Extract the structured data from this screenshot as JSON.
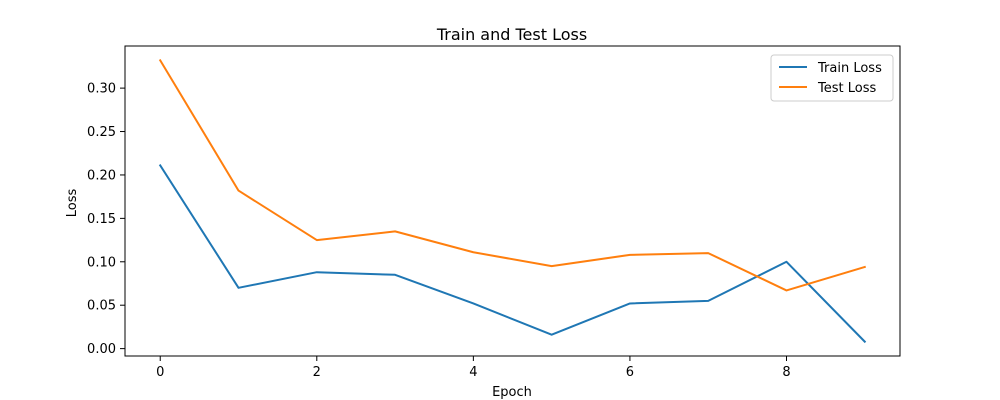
{
  "chart_data": {
    "type": "line",
    "title": "Train and Test Loss",
    "xlabel": "Epoch",
    "ylabel": "Loss",
    "x": [
      0,
      1,
      2,
      3,
      4,
      5,
      6,
      7,
      8,
      9
    ],
    "xlim": [
      -0.45,
      9.45
    ],
    "ylim": [
      -0.0085,
      0.3485
    ],
    "xticks": [
      0,
      2,
      4,
      6,
      8
    ],
    "yticks": [
      0.0,
      0.05,
      0.1,
      0.15,
      0.2,
      0.25,
      0.3
    ],
    "ytick_labels": [
      "0.00",
      "0.05",
      "0.10",
      "0.15",
      "0.20",
      "0.25",
      "0.30"
    ],
    "grid": false,
    "legend_position": "top-right",
    "series": [
      {
        "name": "Train Loss",
        "color": "#1f77b4",
        "values": [
          0.211,
          0.07,
          0.088,
          0.085,
          0.052,
          0.016,
          0.052,
          0.055,
          0.1,
          0.008
        ]
      },
      {
        "name": "Test Loss",
        "color": "#ff7f0e",
        "values": [
          0.332,
          0.182,
          0.125,
          0.135,
          0.111,
          0.095,
          0.108,
          0.11,
          0.067,
          0.094
        ]
      }
    ]
  }
}
